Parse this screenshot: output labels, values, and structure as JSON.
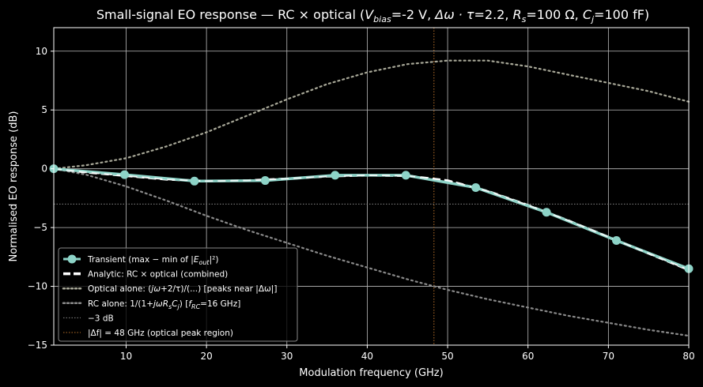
{
  "chart_data": {
    "type": "line",
    "title_prefix": "Small-signal EO response — RC × optical  (",
    "title_params": [
      {
        "sym": "V",
        "sub": "bias",
        "rest": "=-2 V, "
      },
      {
        "sym": "Δω · τ",
        "sub": "",
        "rest": "=2.2, "
      },
      {
        "sym": "R",
        "sub": "s",
        "rest": "=100 Ω, "
      },
      {
        "sym": "C",
        "sub": "j",
        "rest": "=100 fF)"
      }
    ],
    "xlabel": "Modulation frequency (GHz)",
    "ylabel": "Normalised EO response (dB)",
    "xlim": [
      1,
      80
    ],
    "ylim": [
      -15,
      12
    ],
    "xticks": [
      10,
      20,
      30,
      40,
      50,
      60,
      70,
      80
    ],
    "yticks": [
      -15,
      -10,
      -5,
      0,
      5,
      10
    ],
    "grid": true,
    "legend_position": "lower-left",
    "series": [
      {
        "name": "Transient (max − min of |E_out|²)",
        "style": "markers-line",
        "color": "#8dd3c7",
        "x": [
          1,
          9.8,
          18.5,
          27.3,
          36,
          44.8,
          53.5,
          62.3,
          71,
          80
        ],
        "y": [
          0,
          -0.5,
          -1.05,
          -1.0,
          -0.55,
          -0.55,
          -1.6,
          -3.7,
          -6.1,
          -8.5
        ]
      },
      {
        "name": "Analytic: RC × optical (combined)",
        "style": "dashed",
        "color": "#ffffff",
        "x": [
          1,
          5,
          10,
          15,
          20,
          25,
          30,
          35,
          40,
          45,
          50,
          55,
          60,
          65,
          70,
          75,
          80
        ],
        "y": [
          0,
          -0.3,
          -0.6,
          -0.9,
          -1.05,
          -1.0,
          -0.85,
          -0.65,
          -0.55,
          -0.6,
          -1.0,
          -1.9,
          -3.1,
          -4.4,
          -5.8,
          -7.2,
          -8.6
        ]
      },
      {
        "name": "Optical alone: (jω+2/τ)/(...)  [peaks near |Δω|]",
        "style": "dotted",
        "color": "#a8a898",
        "x": [
          1,
          5,
          10,
          15,
          20,
          25,
          30,
          35,
          40,
          45,
          50,
          55,
          60,
          65,
          70,
          75,
          80
        ],
        "y": [
          0,
          0.3,
          0.9,
          1.9,
          3.1,
          4.5,
          5.9,
          7.2,
          8.2,
          8.9,
          9.2,
          9.2,
          8.7,
          8.0,
          7.3,
          6.6,
          5.7
        ]
      },
      {
        "name": "RC alone: 1/(1+jωR_sC_j)  [f_RC=16 GHz]",
        "style": "dotted",
        "color": "#8a8a8a",
        "x": [
          1,
          5,
          10,
          15,
          20,
          25,
          30,
          35,
          40,
          45,
          50,
          55,
          60,
          65,
          70,
          75,
          80
        ],
        "y": [
          0,
          -0.5,
          -1.5,
          -2.7,
          -4.0,
          -5.2,
          -6.3,
          -7.4,
          -8.4,
          -9.4,
          -10.3,
          -11.1,
          -11.8,
          -12.5,
          -13.1,
          -13.7,
          -14.2
        ]
      }
    ],
    "reference_lines": [
      {
        "name": "−3 dB",
        "orientation": "horizontal",
        "value": -3,
        "color": "#888888"
      },
      {
        "name": "|Δf| = 48 GHz (optical peak region)",
        "orientation": "vertical",
        "value": 48.3,
        "color": "#b8702a"
      }
    ],
    "legend": [
      {
        "prefix": "Transient (max − min of |",
        "sym": "E",
        "sub": "out",
        "suffix": "|²)"
      },
      {
        "prefix": "Analytic: RC × optical (combined)",
        "sym": "",
        "sub": "",
        "suffix": ""
      },
      {
        "prefix": "Optical alone: (",
        "sym": "jω",
        "sub": "",
        "suffix": "+2/τ)/(...)  [peaks near |Δω|]"
      },
      {
        "prefix": "RC alone: 1/(1+",
        "sym": "jωR",
        "sub": "s",
        "suffix": "C",
        "sym2": "",
        "sub2": "j",
        "suffix2": ")  [",
        "sym3": "f",
        "sub3": "RC",
        "suffix3": "=16 GHz]"
      },
      {
        "prefix": "−3 dB",
        "sym": "",
        "sub": "",
        "suffix": ""
      },
      {
        "prefix": "|Δf| = 48 GHz (optical peak region)",
        "sym": "",
        "sub": "",
        "suffix": ""
      }
    ]
  }
}
